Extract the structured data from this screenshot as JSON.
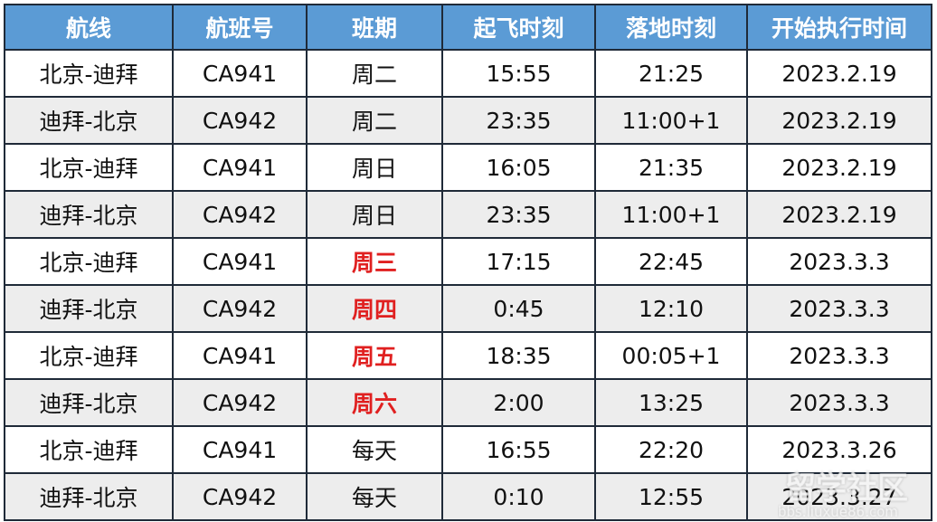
{
  "headers": [
    "航线",
    "航班号",
    "班期",
    "起飞时刻",
    "落地时刻",
    "开始执行时间"
  ],
  "rows": [
    {
      "route": "北京-迪拜",
      "flight": "CA941",
      "days": "周二",
      "dep": "15:55",
      "arr": "21:25",
      "start": "2023.2.19",
      "highlight": false
    },
    {
      "route": "迪拜-北京",
      "flight": "CA942",
      "days": "周二",
      "dep": "23:35",
      "arr": "11:00+1",
      "start": "2023.2.19",
      "highlight": false
    },
    {
      "route": "北京-迪拜",
      "flight": "CA941",
      "days": "周日",
      "dep": "16:05",
      "arr": "21:35",
      "start": "2023.2.19",
      "highlight": false
    },
    {
      "route": "迪拜-北京",
      "flight": "CA942",
      "days": "周日",
      "dep": "23:35",
      "arr": "11:00+1",
      "start": "2023.2.19",
      "highlight": false
    },
    {
      "route": "北京-迪拜",
      "flight": "CA941",
      "days": "周三",
      "dep": "17:15",
      "arr": "22:45",
      "start": "2023.3.3",
      "highlight": true
    },
    {
      "route": "迪拜-北京",
      "flight": "CA942",
      "days": "周四",
      "dep": "0:45",
      "arr": "12:10",
      "start": "2023.3.3",
      "highlight": true
    },
    {
      "route": "北京-迪拜",
      "flight": "CA941",
      "days": "周五",
      "dep": "18:35",
      "arr": "00:05+1",
      "start": "2023.3.3",
      "highlight": true
    },
    {
      "route": "迪拜-北京",
      "flight": "CA942",
      "days": "周六",
      "dep": "2:00",
      "arr": "13:25",
      "start": "2023.3.3",
      "highlight": true
    },
    {
      "route": "北京-迪拜",
      "flight": "CA941",
      "days": "每天",
      "dep": "16:55",
      "arr": "22:20",
      "start": "2023.3.26",
      "highlight": false
    },
    {
      "route": "迪拜-北京",
      "flight": "CA942",
      "days": "每天",
      "dep": "0:10",
      "arr": "12:55",
      "start": "2023.3.27",
      "highlight": false
    }
  ],
  "colors": {
    "header_bg": "#5b9bd5",
    "highlight_text": "#e02020",
    "alt_row_bg": "#ededed"
  },
  "watermark": {
    "title": "留学社区",
    "url": "bbs.liuxue86.com"
  }
}
